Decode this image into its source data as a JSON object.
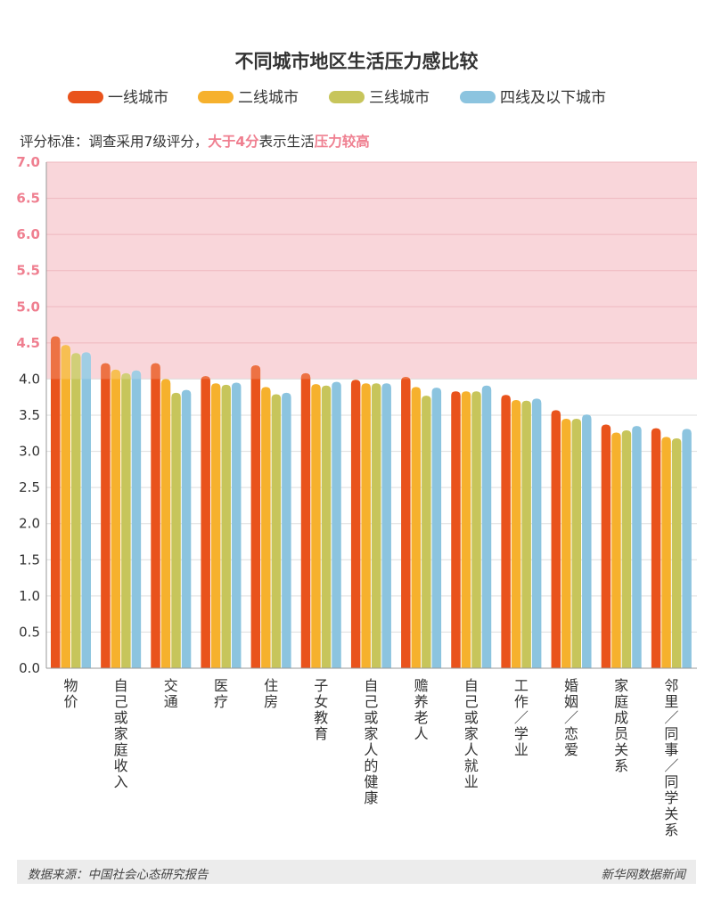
{
  "chart_data": {
    "type": "bar",
    "title": "不同城市地区生活压力感比较",
    "note_parts": [
      "评分标准：调查采用7级评分，",
      "大于4分",
      "表示生活",
      "压力较高"
    ],
    "ylim": [
      0,
      7
    ],
    "yticks": [
      "0.0",
      "0.5",
      "1.0",
      "1.5",
      "2.0",
      "2.5",
      "3.0",
      "3.5",
      "4.0",
      "4.5",
      "5.0",
      "5.5",
      "6.0",
      "6.5",
      "7.0"
    ],
    "threshold": 4,
    "categories": [
      "物价",
      "自己或家庭收入",
      "交通",
      "医疗",
      "住房",
      "子女教育",
      "自己或家人的健康",
      "赡养老人",
      "自己或家人就业",
      "工作／学业",
      "婚姻／恋爱",
      "家庭成员关系",
      "邻里／同事／同学关系"
    ],
    "series": [
      {
        "name": "一线城市",
        "color": "#e9531c",
        "values": [
          4.59,
          4.22,
          4.22,
          4.04,
          4.19,
          4.08,
          3.99,
          4.03,
          3.83,
          3.78,
          3.57,
          3.37,
          3.32
        ]
      },
      {
        "name": "二线城市",
        "color": "#f6b12d",
        "values": [
          4.47,
          4.13,
          4.0,
          3.94,
          3.89,
          3.93,
          3.94,
          3.89,
          3.83,
          3.71,
          3.45,
          3.26,
          3.2
        ]
      },
      {
        "name": "三线城市",
        "color": "#c7c55b",
        "values": [
          4.36,
          4.08,
          3.81,
          3.92,
          3.79,
          3.91,
          3.94,
          3.77,
          3.83,
          3.7,
          3.45,
          3.29,
          3.18
        ]
      },
      {
        "name": "四线及以下城市",
        "color": "#8cc4df",
        "values": [
          4.37,
          4.12,
          3.85,
          3.95,
          3.81,
          3.96,
          3.94,
          3.88,
          3.91,
          3.73,
          3.51,
          3.35,
          3.31
        ]
      }
    ]
  },
  "footer": {
    "source": "数据来源：中国社会心态研究报告",
    "brand": "新华网数据新闻"
  }
}
